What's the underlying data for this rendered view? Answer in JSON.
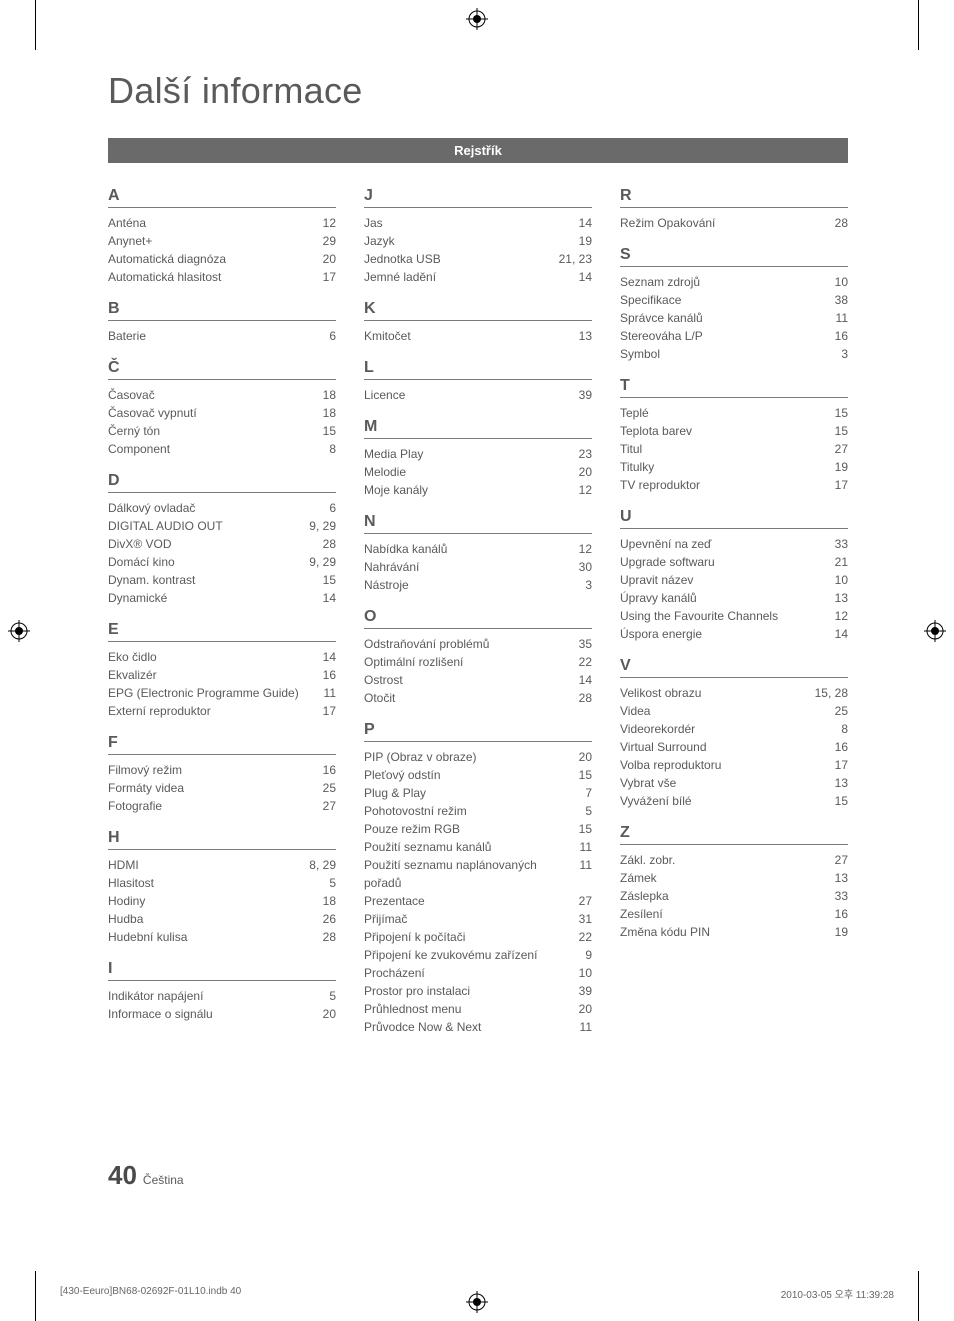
{
  "title": "Další informace",
  "section_header": "Rejstřík",
  "footer": {
    "page_number": "40",
    "language": "Čeština"
  },
  "print": {
    "left": "[430-Eeuro]BN68-02692F-01L10.indb   40",
    "right": "2010-03-05   오후 11:39:28"
  },
  "columns": [
    [
      {
        "letter": "A",
        "entries": [
          {
            "term": "Anténa",
            "page": "12"
          },
          {
            "term": "Anynet+",
            "page": "29"
          },
          {
            "term": "Automatická diagnóza",
            "page": "20"
          },
          {
            "term": "Automatická hlasitost",
            "page": "17"
          }
        ]
      },
      {
        "letter": "B",
        "entries": [
          {
            "term": "Baterie",
            "page": "6"
          }
        ]
      },
      {
        "letter": "Č",
        "entries": [
          {
            "term": "Časovač",
            "page": "18"
          },
          {
            "term": "Časovač vypnutí",
            "page": "18"
          },
          {
            "term": "Černý tón",
            "page": "15"
          },
          {
            "term": "Component",
            "page": "8"
          }
        ]
      },
      {
        "letter": "D",
        "entries": [
          {
            "term": "Dálkový ovladač",
            "page": "6"
          },
          {
            "term": "DIGITAL AUDIO OUT",
            "page": "9, 29"
          },
          {
            "term": "DivX® VOD",
            "page": "28"
          },
          {
            "term": "Domácí kino",
            "page": "9, 29"
          },
          {
            "term": "Dynam. kontrast",
            "page": "15"
          },
          {
            "term": "Dynamické",
            "page": "14"
          }
        ]
      },
      {
        "letter": "E",
        "entries": [
          {
            "term": "Eko čidlo",
            "page": "14"
          },
          {
            "term": "Ekvalizér",
            "page": "16"
          },
          {
            "term": "EPG (Electronic Programme Guide)",
            "page": "11"
          },
          {
            "term": "Externí reproduktor",
            "page": "17"
          }
        ]
      },
      {
        "letter": "F",
        "entries": [
          {
            "term": "Filmový režim",
            "page": "16"
          },
          {
            "term": "Formáty videa",
            "page": "25"
          },
          {
            "term": "Fotografie",
            "page": "27"
          }
        ]
      },
      {
        "letter": "H",
        "entries": [
          {
            "term": "HDMI",
            "page": "8, 29"
          },
          {
            "term": "Hlasitost",
            "page": "5"
          },
          {
            "term": "Hodiny",
            "page": "18"
          },
          {
            "term": "Hudba",
            "page": "26"
          },
          {
            "term": "Hudební kulisa",
            "page": "28"
          }
        ]
      },
      {
        "letter": "I",
        "entries": [
          {
            "term": "Indikátor napájení",
            "page": "5"
          },
          {
            "term": "Informace o signálu",
            "page": "20"
          }
        ]
      }
    ],
    [
      {
        "letter": "J",
        "entries": [
          {
            "term": "Jas",
            "page": "14"
          },
          {
            "term": "Jazyk",
            "page": "19"
          },
          {
            "term": "Jednotka USB",
            "page": "21, 23"
          },
          {
            "term": "Jemné ladění",
            "page": "14"
          }
        ]
      },
      {
        "letter": "K",
        "entries": [
          {
            "term": "Kmitočet",
            "page": "13"
          }
        ]
      },
      {
        "letter": "L",
        "entries": [
          {
            "term": "Licence",
            "page": "39"
          }
        ]
      },
      {
        "letter": "M",
        "entries": [
          {
            "term": "Media Play",
            "page": "23"
          },
          {
            "term": "Melodie",
            "page": "20"
          },
          {
            "term": "Moje kanály",
            "page": "12"
          }
        ]
      },
      {
        "letter": "N",
        "entries": [
          {
            "term": "Nabídka kanálů",
            "page": "12"
          },
          {
            "term": "Nahrávání",
            "page": "30"
          },
          {
            "term": "Nástroje",
            "page": "3"
          }
        ]
      },
      {
        "letter": "O",
        "entries": [
          {
            "term": "Odstraňování problémů",
            "page": "35"
          },
          {
            "term": "Optimální rozlišení",
            "page": "22"
          },
          {
            "term": "Ostrost",
            "page": "14"
          },
          {
            "term": "Otočit",
            "page": "28"
          }
        ]
      },
      {
        "letter": "P",
        "entries": [
          {
            "term": "PIP (Obraz v obraze)",
            "page": "20"
          },
          {
            "term": "Pleťový odstín",
            "page": "15"
          },
          {
            "term": "Plug & Play",
            "page": "7"
          },
          {
            "term": "Pohotovostní režim",
            "page": "5"
          },
          {
            "term": "Pouze režim RGB",
            "page": "15"
          },
          {
            "term": "Použití seznamu kanálů",
            "page": "11"
          },
          {
            "term": "Použití seznamu naplánovaných pořadů",
            "page": "11"
          },
          {
            "term": "Prezentace",
            "page": "27"
          },
          {
            "term": "Přijímač",
            "page": "31"
          },
          {
            "term": "Připojení k počítači",
            "page": "22"
          },
          {
            "term": "Připojení ke zvukovému zařízení",
            "page": "9"
          },
          {
            "term": "Procházení",
            "page": "10"
          },
          {
            "term": "Prostor pro instalaci",
            "page": "39"
          },
          {
            "term": "Průhlednost menu",
            "page": "20"
          },
          {
            "term": "Průvodce Now & Next",
            "page": "11"
          }
        ]
      }
    ],
    [
      {
        "letter": "R",
        "entries": [
          {
            "term": "Režim Opakování",
            "page": "28"
          }
        ]
      },
      {
        "letter": "S",
        "entries": [
          {
            "term": "Seznam zdrojů",
            "page": "10"
          },
          {
            "term": "Specifikace",
            "page": "38"
          },
          {
            "term": "Správce kanálů",
            "page": "11"
          },
          {
            "term": "Stereováha L/P",
            "page": "16"
          },
          {
            "term": "Symbol",
            "page": "3"
          }
        ]
      },
      {
        "letter": "T",
        "entries": [
          {
            "term": "Teplé",
            "page": "15"
          },
          {
            "term": "Teplota barev",
            "page": "15"
          },
          {
            "term": "Titul",
            "page": "27"
          },
          {
            "term": "Titulky",
            "page": "19"
          },
          {
            "term": "TV reproduktor",
            "page": "17"
          }
        ]
      },
      {
        "letter": "U",
        "entries": [
          {
            "term": "Upevnění na zeď",
            "page": "33"
          },
          {
            "term": "Upgrade softwaru",
            "page": "21"
          },
          {
            "term": "Upravit název",
            "page": "10"
          },
          {
            "term": "Úpravy kanálů",
            "page": "13"
          },
          {
            "term": "Using the Favourite Channels",
            "page": "12"
          },
          {
            "term": "Úspora energie",
            "page": "14"
          }
        ]
      },
      {
        "letter": "V",
        "entries": [
          {
            "term": "Velikost obrazu",
            "page": "15, 28"
          },
          {
            "term": "Videa",
            "page": "25"
          },
          {
            "term": "Videorekordér",
            "page": "8"
          },
          {
            "term": "Virtual Surround",
            "page": "16"
          },
          {
            "term": "Volba reproduktoru",
            "page": "17"
          },
          {
            "term": "Vybrat vše",
            "page": "13"
          },
          {
            "term": "Vyvážení bílé",
            "page": "15"
          }
        ]
      },
      {
        "letter": "Z",
        "entries": [
          {
            "term": "Zákl. zobr.",
            "page": "27"
          },
          {
            "term": "Zámek",
            "page": "13"
          },
          {
            "term": "Záslepka",
            "page": "33"
          },
          {
            "term": "Zesílení",
            "page": "16"
          },
          {
            "term": "Změna kódu PIN",
            "page": "19"
          }
        ]
      }
    ]
  ]
}
